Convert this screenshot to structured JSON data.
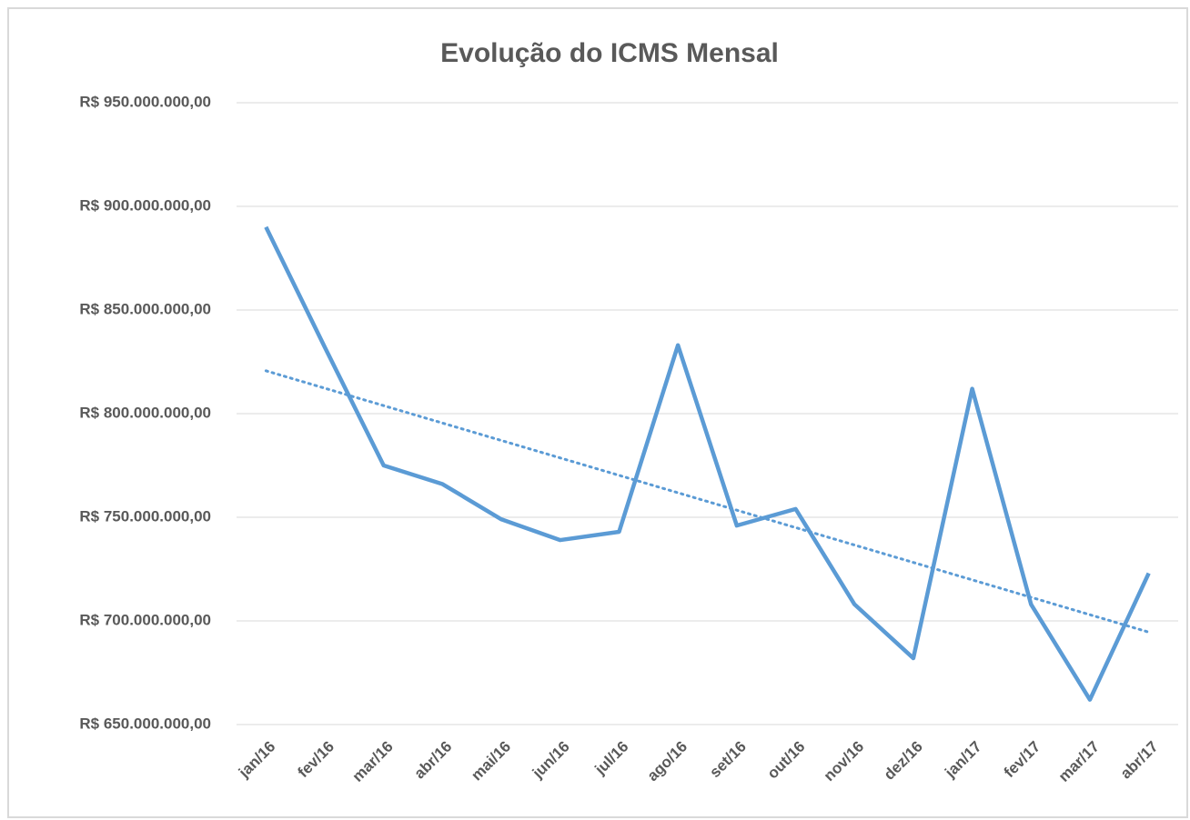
{
  "chart_data": {
    "type": "line",
    "title": "Evolução do ICMS Mensal",
    "categories": [
      "jan/16",
      "fev/16",
      "mar/16",
      "abr/16",
      "mai/16",
      "jun/16",
      "jul/16",
      "ago/16",
      "set/16",
      "out/16",
      "nov/16",
      "dez/16",
      "jan/17",
      "fev/17",
      "mar/17",
      "abr/17"
    ],
    "series": [
      {
        "color": "#5b9bd5",
        "values": [
          890000000,
          832000000,
          775000000,
          766000000,
          749000000,
          739000000,
          743000000,
          833000000,
          746000000,
          754000000,
          708000000,
          682000000,
          812000000,
          708000000,
          662000000,
          723000000
        ]
      }
    ],
    "trendline": "linear",
    "ylim": [
      650000000,
      950000000
    ],
    "yticks": [
      {
        "value": 650000000,
        "label": "R$ 650.000.000,00"
      },
      {
        "value": 700000000,
        "label": "R$ 700.000.000,00"
      },
      {
        "value": 750000000,
        "label": "R$ 750.000.000,00"
      },
      {
        "value": 800000000,
        "label": "R$ 800.000.000,00"
      },
      {
        "value": 850000000,
        "label": "R$ 850.000.000,00"
      },
      {
        "value": 900000000,
        "label": "R$ 900.000.000,00"
      },
      {
        "value": 950000000,
        "label": "R$ 950.000.000,00"
      }
    ],
    "grid": true
  }
}
